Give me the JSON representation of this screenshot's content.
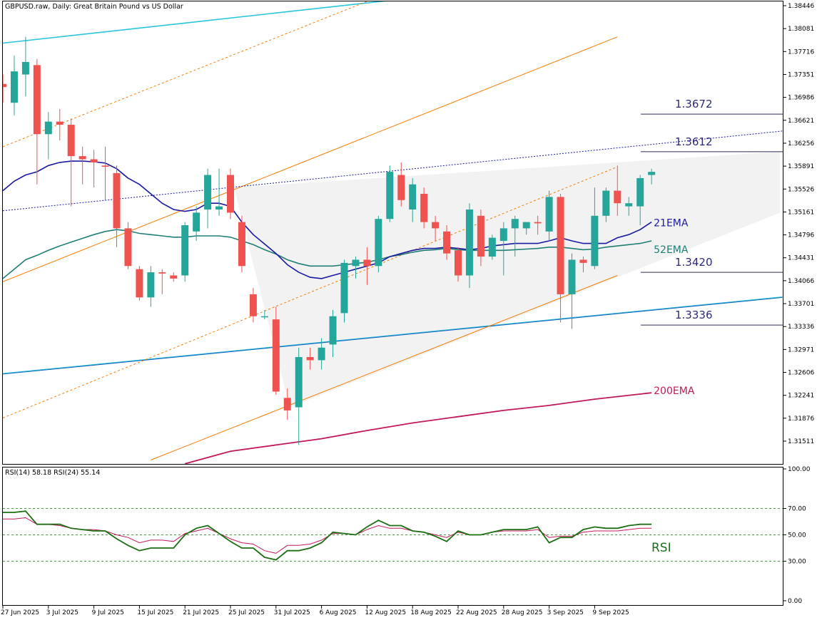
{
  "header": {
    "title": "GBPUSD.raw, Daily:  Great Britain Pound vs US Dollar"
  },
  "colors": {
    "bull": "#26a69a",
    "bear": "#ef5350",
    "ema21": "#1a1aa0",
    "ema52": "#1f7f74",
    "ema200": "#c2185b",
    "channel": "#f57c00",
    "cyan": "#26c6da",
    "blue_trend": "#1565c0",
    "rsi14": "#1b6e12",
    "rsi24": "#c2185b",
    "level_text": "#2b2b7a"
  },
  "chart_data": [
    {
      "type": "candlestick",
      "title": "GBPUSD.raw, Daily:  Great Britain Pound vs US Dollar",
      "ylim": [
        1.3115,
        1.3854
      ],
      "y_ticks": [
        "1.38446",
        "1.38081",
        "1.37716",
        "1.37351",
        "1.36986",
        "1.36621",
        "1.36256",
        "1.35891",
        "1.35526",
        "1.35161",
        "1.34796",
        "1.34431",
        "1.34066",
        "1.33701",
        "1.33336",
        "1.32971",
        "1.32606",
        "1.32241",
        "1.31876",
        "1.31511"
      ],
      "x_tick_labels": [
        "27 Jun 2025",
        "3 Jul 2025",
        "9 Jul 2025",
        "15 Jul 2025",
        "21 Jul 2025",
        "25 Jul 2025",
        "31 Jul 2025",
        "6 Aug 2025",
        "12 Aug 2025",
        "18 Aug 2025",
        "22 Aug 2025",
        "28 Aug 2025",
        "3 Sep 2025",
        "9 Sep 2025"
      ],
      "x_tick_index": [
        0,
        4,
        8,
        12,
        16,
        20,
        24,
        28,
        32,
        36,
        40,
        44,
        48,
        52
      ],
      "candles": [
        {
          "o": 1.372,
          "h": 1.3735,
          "l": 1.369,
          "c": 1.3715
        },
        {
          "o": 1.369,
          "h": 1.3765,
          "l": 1.367,
          "c": 1.374
        },
        {
          "o": 1.3735,
          "h": 1.3795,
          "l": 1.37,
          "c": 1.3755
        },
        {
          "o": 1.375,
          "h": 1.376,
          "l": 1.356,
          "c": 1.364
        },
        {
          "o": 1.364,
          "h": 1.3675,
          "l": 1.36,
          "c": 1.366
        },
        {
          "o": 1.366,
          "h": 1.368,
          "l": 1.363,
          "c": 1.3655
        },
        {
          "o": 1.3655,
          "h": 1.3665,
          "l": 1.3525,
          "c": 1.3605
        },
        {
          "o": 1.3605,
          "h": 1.362,
          "l": 1.356,
          "c": 1.36
        },
        {
          "o": 1.36,
          "h": 1.3615,
          "l": 1.3555,
          "c": 1.3595
        },
        {
          "o": 1.359,
          "h": 1.362,
          "l": 1.3535,
          "c": 1.3588
        },
        {
          "o": 1.3578,
          "h": 1.359,
          "l": 1.346,
          "c": 1.349
        },
        {
          "o": 1.349,
          "h": 1.35,
          "l": 1.3425,
          "c": 1.343
        },
        {
          "o": 1.3425,
          "h": 1.343,
          "l": 1.3375,
          "c": 1.338
        },
        {
          "o": 1.338,
          "h": 1.343,
          "l": 1.3365,
          "c": 1.342
        },
        {
          "o": 1.342,
          "h": 1.3425,
          "l": 1.3385,
          "c": 1.3418
        },
        {
          "o": 1.3415,
          "h": 1.342,
          "l": 1.3405,
          "c": 1.341
        },
        {
          "o": 1.3415,
          "h": 1.35,
          "l": 1.3405,
          "c": 1.3495
        },
        {
          "o": 1.3485,
          "h": 1.3525,
          "l": 1.347,
          "c": 1.3515
        },
        {
          "o": 1.352,
          "h": 1.3585,
          "l": 1.349,
          "c": 1.3575
        },
        {
          "o": 1.352,
          "h": 1.3585,
          "l": 1.351,
          "c": 1.3525
        },
        {
          "o": 1.3575,
          "h": 1.3585,
          "l": 1.3505,
          "c": 1.3515
        },
        {
          "o": 1.35,
          "h": 1.351,
          "l": 1.342,
          "c": 1.343
        },
        {
          "o": 1.3385,
          "h": 1.3395,
          "l": 1.334,
          "c": 1.335
        },
        {
          "o": 1.335,
          "h": 1.336,
          "l": 1.3345,
          "c": 1.335
        },
        {
          "o": 1.3345,
          "h": 1.3365,
          "l": 1.3225,
          "c": 1.323
        },
        {
          "o": 1.322,
          "h": 1.3235,
          "l": 1.3185,
          "c": 1.32
        },
        {
          "o": 1.3205,
          "h": 1.33,
          "l": 1.3145,
          "c": 1.3285
        },
        {
          "o": 1.3285,
          "h": 1.33,
          "l": 1.3265,
          "c": 1.328
        },
        {
          "o": 1.328,
          "h": 1.3315,
          "l": 1.3265,
          "c": 1.33
        },
        {
          "o": 1.3305,
          "h": 1.336,
          "l": 1.3285,
          "c": 1.335
        },
        {
          "o": 1.3355,
          "h": 1.344,
          "l": 1.334,
          "c": 1.3435
        },
        {
          "o": 1.343,
          "h": 1.3445,
          "l": 1.341,
          "c": 1.344
        },
        {
          "o": 1.344,
          "h": 1.346,
          "l": 1.34,
          "c": 1.343
        },
        {
          "o": 1.343,
          "h": 1.351,
          "l": 1.342,
          "c": 1.3505
        },
        {
          "o": 1.3505,
          "h": 1.359,
          "l": 1.35,
          "c": 1.358
        },
        {
          "o": 1.3575,
          "h": 1.3595,
          "l": 1.3525,
          "c": 1.3535
        },
        {
          "o": 1.352,
          "h": 1.357,
          "l": 1.35,
          "c": 1.356
        },
        {
          "o": 1.3545,
          "h": 1.3555,
          "l": 1.349,
          "c": 1.35
        },
        {
          "o": 1.35,
          "h": 1.351,
          "l": 1.347,
          "c": 1.349
        },
        {
          "o": 1.3485,
          "h": 1.3495,
          "l": 1.344,
          "c": 1.345
        },
        {
          "o": 1.3455,
          "h": 1.346,
          "l": 1.3405,
          "c": 1.3415
        },
        {
          "o": 1.3415,
          "h": 1.353,
          "l": 1.3395,
          "c": 1.352
        },
        {
          "o": 1.351,
          "h": 1.352,
          "l": 1.343,
          "c": 1.3445
        },
        {
          "o": 1.3445,
          "h": 1.348,
          "l": 1.344,
          "c": 1.3475
        },
        {
          "o": 1.347,
          "h": 1.35,
          "l": 1.3415,
          "c": 1.349
        },
        {
          "o": 1.349,
          "h": 1.351,
          "l": 1.3445,
          "c": 1.3505
        },
        {
          "o": 1.349,
          "h": 1.35,
          "l": 1.348,
          "c": 1.35
        },
        {
          "o": 1.35,
          "h": 1.351,
          "l": 1.348,
          "c": 1.3498
        },
        {
          "o": 1.3485,
          "h": 1.355,
          "l": 1.347,
          "c": 1.354
        },
        {
          "o": 1.354,
          "h": 1.3545,
          "l": 1.334,
          "c": 1.3385
        },
        {
          "o": 1.3385,
          "h": 1.345,
          "l": 1.333,
          "c": 1.344
        },
        {
          "o": 1.344,
          "h": 1.3445,
          "l": 1.342,
          "c": 1.3435
        },
        {
          "o": 1.343,
          "h": 1.3555,
          "l": 1.3425,
          "c": 1.351
        },
        {
          "o": 1.351,
          "h": 1.3555,
          "l": 1.35,
          "c": 1.355
        },
        {
          "o": 1.355,
          "h": 1.359,
          "l": 1.351,
          "c": 1.353
        },
        {
          "o": 1.3525,
          "h": 1.354,
          "l": 1.351,
          "c": 1.353
        },
        {
          "o": 1.3525,
          "h": 1.3575,
          "l": 1.3495,
          "c": 1.357
        },
        {
          "o": 1.3575,
          "h": 1.3585,
          "l": 1.356,
          "c": 1.358
        }
      ],
      "ema21": [
        1.355,
        1.3565,
        1.3575,
        1.358,
        1.359,
        1.3595,
        1.3597,
        1.3597,
        1.3596,
        1.3594,
        1.3585,
        1.357,
        1.356,
        1.3545,
        1.353,
        1.352,
        1.3517,
        1.352,
        1.353,
        1.353,
        1.3525,
        1.35,
        1.348,
        1.3465,
        1.345,
        1.3432,
        1.342,
        1.3412,
        1.341,
        1.3415,
        1.342,
        1.3425,
        1.343,
        1.3435,
        1.3445,
        1.345,
        1.3455,
        1.3458,
        1.3458,
        1.346,
        1.3458,
        1.3456,
        1.3458,
        1.3462,
        1.3464,
        1.3466,
        1.3466,
        1.3466,
        1.347,
        1.3475,
        1.347,
        1.3466,
        1.3466,
        1.3466,
        1.3475,
        1.348,
        1.3488,
        1.35
      ],
      "ema52": [
        1.341,
        1.3425,
        1.344,
        1.3447,
        1.3455,
        1.3462,
        1.3468,
        1.3474,
        1.348,
        1.3485,
        1.3488,
        1.3486,
        1.3482,
        1.348,
        1.3478,
        1.3476,
        1.3476,
        1.3478,
        1.3478,
        1.3478,
        1.3476,
        1.347,
        1.3464,
        1.3456,
        1.3449,
        1.344,
        1.3434,
        1.343,
        1.343,
        1.343,
        1.3432,
        1.3434,
        1.3436,
        1.344,
        1.3445,
        1.3448,
        1.3452,
        1.3455,
        1.3456,
        1.3458,
        1.3456,
        1.3455,
        1.3455,
        1.3455,
        1.3455,
        1.3456,
        1.3457,
        1.3458,
        1.346,
        1.346,
        1.3458,
        1.3456,
        1.3457,
        1.346,
        1.3462,
        1.3464,
        1.3466,
        1.347
      ],
      "ema200": [
        [
          16,
          1.3115
        ],
        [
          20,
          1.3135
        ],
        [
          24,
          1.3145
        ],
        [
          28,
          1.3155
        ],
        [
          32,
          1.3168
        ],
        [
          36,
          1.318
        ],
        [
          40,
          1.319
        ],
        [
          44,
          1.32
        ],
        [
          48,
          1.3208
        ],
        [
          52,
          1.3218
        ],
        [
          57,
          1.3228
        ]
      ],
      "levels": [
        {
          "label": "1.3672",
          "value": 1.3672
        },
        {
          "label": "1.3612",
          "value": 1.3612
        },
        {
          "label": "1.3420",
          "value": 1.342
        },
        {
          "label": "1.3336",
          "value": 1.3336
        }
      ],
      "ema_labels": {
        "ema21": "21EMA",
        "ema52": "52EMA",
        "ema200": "200EMA"
      }
    },
    {
      "type": "line",
      "title": "RSI(14) 58.18 RSI(24) 55.14",
      "ylim": [
        0,
        100
      ],
      "y_ticks": [
        "100.00",
        "70.00",
        "50.00",
        "30.00",
        "0.00"
      ],
      "levels": [
        70,
        50,
        30
      ],
      "annotation": "RSI",
      "series": [
        {
          "name": "RSI(14)",
          "values": [
            67,
            67,
            68,
            58,
            58,
            58,
            55,
            54,
            53,
            53,
            47,
            42,
            38,
            40,
            40,
            40,
            50,
            55,
            57,
            51,
            45,
            40,
            40,
            33,
            31,
            38,
            38,
            40,
            44,
            52,
            51,
            50,
            56,
            61,
            57,
            57,
            53,
            52,
            49,
            45,
            53,
            50,
            50,
            52,
            54,
            54,
            54,
            56,
            44,
            48,
            48,
            54,
            56,
            55,
            55,
            57,
            58,
            58
          ]
        },
        {
          "name": "RSI(24)",
          "values": [
            62,
            62,
            63,
            58,
            58,
            57,
            55,
            54,
            54,
            53,
            50,
            48,
            44,
            46,
            46,
            45,
            51,
            53,
            55,
            51,
            47,
            44,
            43,
            38,
            36,
            42,
            42,
            43,
            46,
            51,
            51,
            50,
            54,
            57,
            55,
            55,
            53,
            52,
            50,
            48,
            52,
            50,
            50,
            52,
            53,
            53,
            53,
            54,
            48,
            49,
            49,
            52,
            53,
            53,
            53,
            54,
            55,
            55
          ]
        }
      ]
    }
  ]
}
